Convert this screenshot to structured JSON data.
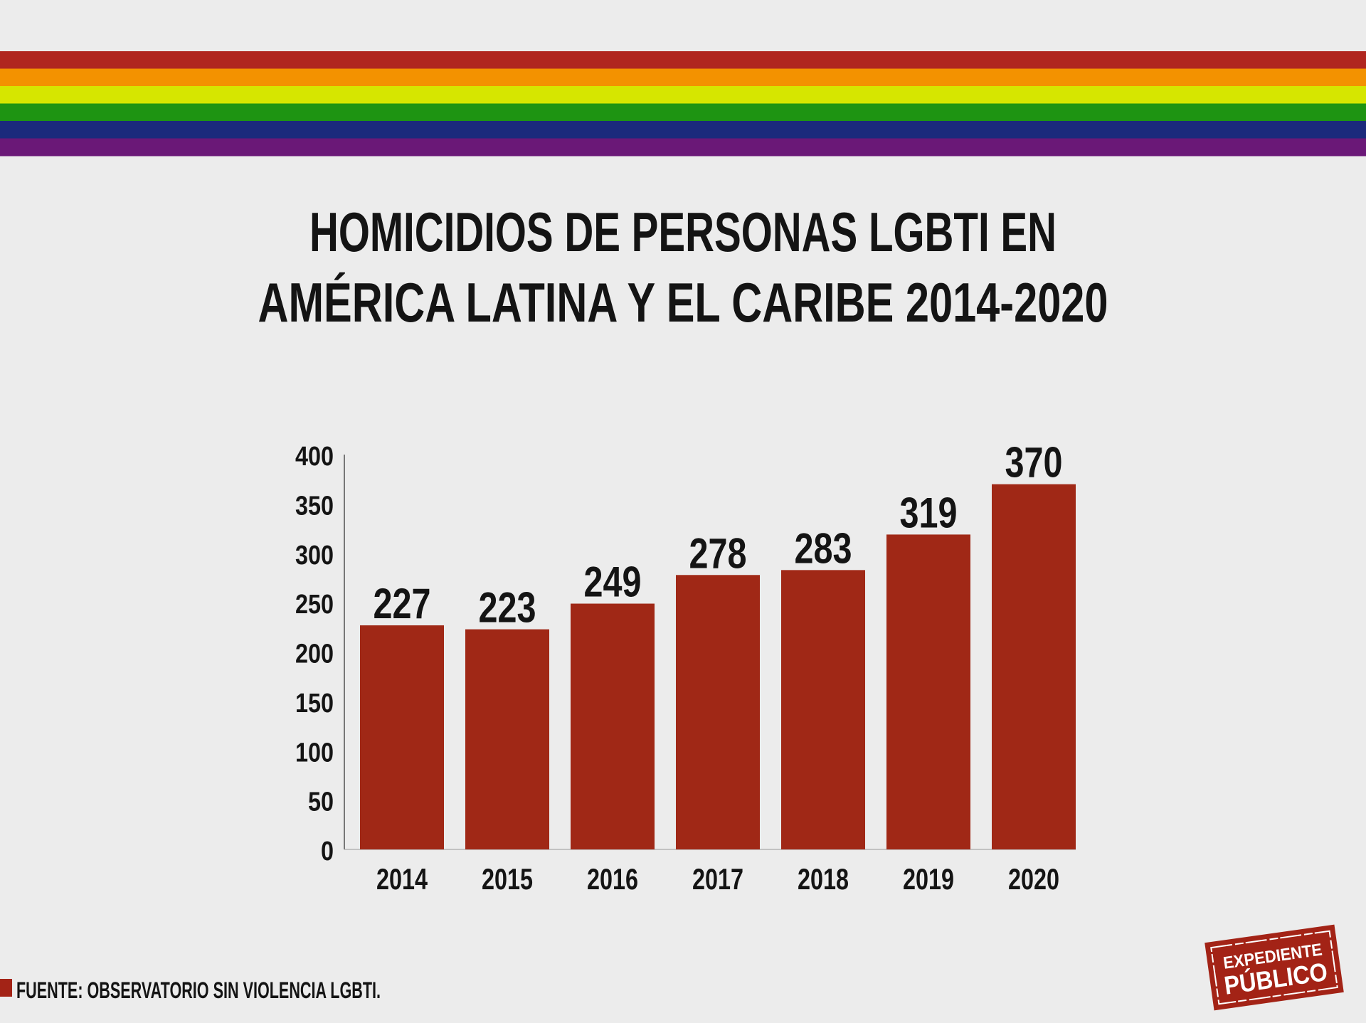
{
  "rainbow_colors": [
    "#b0261f",
    "#f39200",
    "#d6e600",
    "#1e9412",
    "#1b2a7c",
    "#6a1877"
  ],
  "title_lines": [
    "HOMICIDIOS DE PERSONAS LGBTI EN",
    "AMÉRICA LATINA Y EL CARIBE 2014-2020"
  ],
  "footer": {
    "source": "FUENTE: OBSERVATORIO SIN VIOLENCIA LGBTI.",
    "marker_color": "#a32316"
  },
  "logo": {
    "line1": "EXPEDIENTE",
    "line2": "PÚBLICO",
    "color": "#a32316"
  },
  "chart_data": {
    "type": "bar",
    "categories": [
      "2014",
      "2015",
      "2016",
      "2017",
      "2018",
      "2019",
      "2020"
    ],
    "values": [
      227,
      223,
      249,
      278,
      283,
      319,
      370
    ],
    "ylim": [
      0,
      400
    ],
    "yticks": [
      0,
      50,
      100,
      150,
      200,
      250,
      300,
      350,
      400
    ],
    "bar_color": "#a02816",
    "grid": false,
    "data_labels": true,
    "title": "HOMICIDIOS DE PERSONAS LGBTI EN AMÉRICA LATINA Y EL CARIBE 2014-2020"
  }
}
